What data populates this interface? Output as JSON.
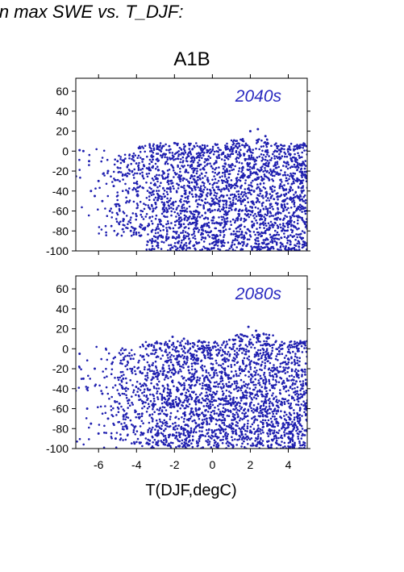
{
  "page": {
    "heading": "in max SWE vs. T_DJF:"
  },
  "chart_data": {
    "type": "scatter",
    "title": "A1B",
    "xlabel": "T(DJF,degC)",
    "ylabel": "",
    "xlim": [
      -7.2,
      5
    ],
    "ylim": [
      -100,
      73
    ],
    "xticks": [
      -6,
      -4,
      -2,
      0,
      2,
      4
    ],
    "yticks": [
      -100,
      -80,
      -60,
      -40,
      -20,
      0,
      20,
      40,
      60
    ],
    "grid": false,
    "legend": "none",
    "point_color": "#2020b0",
    "label_color": "#2a2ac0",
    "panels": [
      {
        "label": "2040s",
        "points": [
          [
            -7.0,
            1
          ],
          [
            -6.8,
            0
          ],
          [
            -6.5,
            -10
          ],
          [
            -6.4,
            -40
          ],
          [
            -6.2,
            -45
          ],
          [
            -6.0,
            -30
          ],
          [
            -5.8,
            -50
          ],
          [
            -5.5,
            -20
          ],
          [
            -5.4,
            -60
          ],
          [
            -5.2,
            -35
          ],
          [
            -5.0,
            -10
          ],
          [
            -4.9,
            -55
          ],
          [
            -4.7,
            -70
          ],
          [
            -4.5,
            -25
          ],
          [
            -4.3,
            -80
          ],
          [
            -4.2,
            -5
          ],
          [
            -4.0,
            -65
          ],
          [
            -3.8,
            -85
          ],
          [
            -3.6,
            -15
          ],
          [
            -3.4,
            -75
          ],
          [
            -3.2,
            0
          ],
          [
            -3.0,
            -90
          ],
          [
            -2.8,
            -45
          ],
          [
            -2.6,
            5
          ],
          [
            -2.4,
            -88
          ],
          [
            -2.2,
            -30
          ],
          [
            -2.0,
            8
          ],
          [
            -1.8,
            -92
          ],
          [
            -1.6,
            -60
          ],
          [
            -1.4,
            -20
          ],
          [
            -1.2,
            6
          ],
          [
            -1.0,
            -95
          ],
          [
            -0.8,
            -70
          ],
          [
            -0.6,
            -40
          ],
          [
            -0.4,
            3
          ],
          [
            -0.2,
            -98
          ],
          [
            0.0,
            -50
          ],
          [
            0.2,
            -10
          ],
          [
            0.4,
            -99
          ],
          [
            0.6,
            -80
          ],
          [
            0.8,
            -30
          ],
          [
            1.0,
            4
          ],
          [
            1.2,
            -100
          ],
          [
            1.4,
            -60
          ],
          [
            1.6,
            12
          ],
          [
            1.8,
            -95
          ],
          [
            2.0,
            20
          ],
          [
            2.2,
            -40
          ],
          [
            2.4,
            22
          ],
          [
            2.6,
            -85
          ],
          [
            2.8,
            15
          ],
          [
            3.0,
            -98
          ],
          [
            3.2,
            -20
          ],
          [
            3.4,
            5
          ],
          [
            3.6,
            -92
          ],
          [
            3.8,
            -50
          ],
          [
            4.0,
            -99
          ],
          [
            4.2,
            -10
          ],
          [
            4.5,
            -100
          ],
          [
            4.7,
            -30
          ],
          [
            4.9,
            -60
          ],
          [
            4.95,
            -25
          ]
        ]
      },
      {
        "label": "2080s",
        "points": [
          [
            -7.0,
            -5
          ],
          [
            -6.8,
            -30
          ],
          [
            -6.6,
            -60
          ],
          [
            -6.4,
            -75
          ],
          [
            -6.2,
            -20
          ],
          [
            -6.0,
            -85
          ],
          [
            -5.8,
            -45
          ],
          [
            -5.5,
            -70
          ],
          [
            -5.3,
            -15
          ],
          [
            -5.1,
            -90
          ],
          [
            -4.9,
            -55
          ],
          [
            -4.7,
            -30
          ],
          [
            -4.5,
            -80
          ],
          [
            -4.3,
            -10
          ],
          [
            -4.1,
            -95
          ],
          [
            -3.9,
            -40
          ],
          [
            -3.7,
            -65
          ],
          [
            -3.5,
            0
          ],
          [
            -3.3,
            -92
          ],
          [
            -3.1,
            -25
          ],
          [
            -2.9,
            -75
          ],
          [
            -2.7,
            5
          ],
          [
            -2.5,
            -96
          ],
          [
            -2.3,
            -50
          ],
          [
            -2.1,
            12
          ],
          [
            -1.9,
            -88
          ],
          [
            -1.7,
            -35
          ],
          [
            -1.5,
            10
          ],
          [
            -1.3,
            -97
          ],
          [
            -1.1,
            -60
          ],
          [
            -0.9,
            -15
          ],
          [
            -0.7,
            8
          ],
          [
            -0.5,
            -99
          ],
          [
            -0.3,
            -70
          ],
          [
            -0.1,
            -40
          ],
          [
            0.1,
            6
          ],
          [
            0.3,
            -100
          ],
          [
            0.5,
            -80
          ],
          [
            0.7,
            -25
          ],
          [
            0.9,
            9
          ],
          [
            1.1,
            -98
          ],
          [
            1.3,
            -55
          ],
          [
            1.5,
            10
          ],
          [
            1.7,
            -90
          ],
          [
            1.9,
            22
          ],
          [
            2.1,
            -45
          ],
          [
            2.3,
            18
          ],
          [
            2.5,
            -95
          ],
          [
            2.7,
            15
          ],
          [
            2.9,
            -65
          ],
          [
            3.1,
            -99
          ],
          [
            3.3,
            -20
          ],
          [
            3.5,
            -96
          ],
          [
            3.7,
            -50
          ],
          [
            3.9,
            -100
          ],
          [
            4.1,
            -85
          ],
          [
            4.3,
            -99
          ],
          [
            4.5,
            -70
          ],
          [
            4.7,
            -100
          ],
          [
            4.9,
            -55
          ]
        ]
      }
    ]
  }
}
